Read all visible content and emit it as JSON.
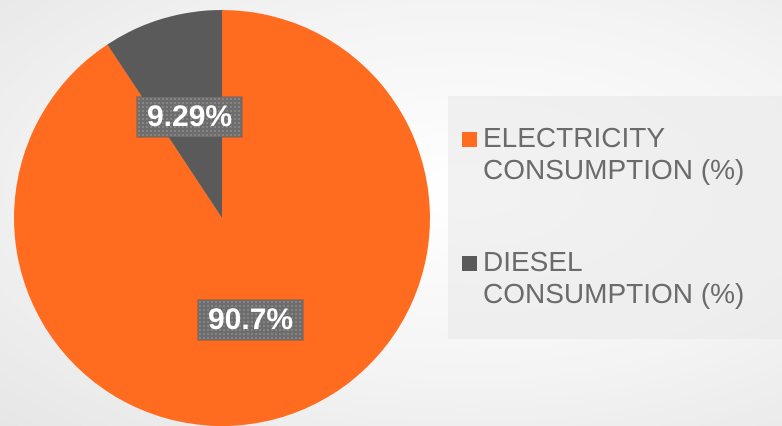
{
  "chart_data": {
    "type": "pie",
    "categories": [
      "ELECTRICITY CONSUMPTION (%)",
      "DIESEL CONSUMPTION (%)"
    ],
    "values": [
      90.7,
      9.29
    ],
    "value_labels": [
      "90.7%",
      "9.29%"
    ],
    "colors": [
      "#ff6b1f",
      "#5a5a5a"
    ],
    "legend_position": "right",
    "legend": [
      "ELECTRICITY CONSUMPTION (%)",
      "DIESEL CONSUMPTION (%)"
    ],
    "title": ""
  }
}
